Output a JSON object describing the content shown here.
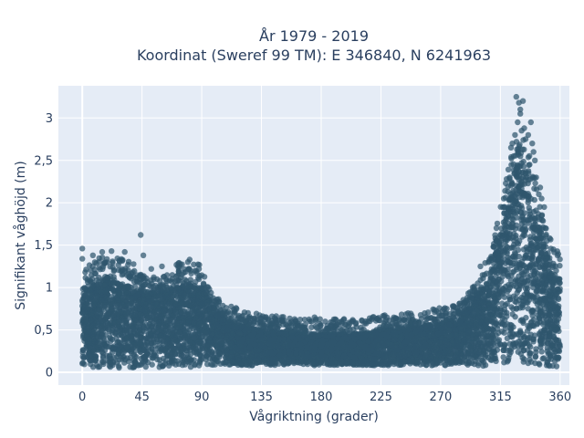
{
  "chart_data": {
    "type": "scatter",
    "title": "År 1979 - 2019",
    "subtitle": "Koordinat (Sweref 99 TM): E 346840, N 6241963",
    "xlabel": "Vågriktning (grader)",
    "ylabel": "Signifikant våghöjd (m)",
    "xlim": [
      -18,
      367
    ],
    "ylim": [
      -0.15,
      3.38
    ],
    "x_ticks": [
      0,
      45,
      90,
      135,
      180,
      225,
      270,
      315,
      360
    ],
    "x_tick_labels": [
      "0",
      "45",
      "90",
      "135",
      "180",
      "225",
      "270",
      "315",
      "360"
    ],
    "y_ticks": [
      0,
      0.5,
      1,
      1.5,
      2,
      2.5,
      3
    ],
    "y_tick_labels": [
      "0",
      "0,5",
      "1",
      "1,5",
      "2",
      "2,5",
      "3"
    ],
    "grid": true,
    "marker_color": "#2f566e",
    "plot_background": "#e5ecf6",
    "envelope": {
      "description_x": [
        0,
        10,
        20,
        30,
        40,
        50,
        60,
        70,
        80,
        90,
        100,
        110,
        120,
        135,
        150,
        165,
        180,
        195,
        210,
        225,
        240,
        255,
        270,
        280,
        290,
        300,
        305,
        310,
        315,
        320,
        325,
        330,
        335,
        340,
        345,
        350,
        355,
        360
      ],
      "upper_y": [
        1.0,
        1.05,
        1.1,
        1.05,
        1.0,
        0.95,
        0.95,
        1.0,
        1.05,
        1.0,
        0.75,
        0.62,
        0.55,
        0.5,
        0.48,
        0.45,
        0.45,
        0.45,
        0.46,
        0.5,
        0.52,
        0.55,
        0.58,
        0.62,
        0.75,
        0.95,
        1.05,
        1.3,
        1.7,
        2.1,
        2.4,
        2.5,
        2.4,
        2.1,
        1.7,
        1.4,
        1.2,
        1.1
      ],
      "lower_y": [
        0.05,
        0.05,
        0.05,
        0.05,
        0.05,
        0.05,
        0.05,
        0.05,
        0.05,
        0.08,
        0.08,
        0.08,
        0.08,
        0.08,
        0.08,
        0.08,
        0.08,
        0.08,
        0.08,
        0.08,
        0.08,
        0.08,
        0.08,
        0.08,
        0.08,
        0.08,
        0.07,
        0.07,
        0.07,
        0.07,
        0.07,
        0.07,
        0.07,
        0.07,
        0.07,
        0.06,
        0.05,
        0.05
      ]
    },
    "outliers": [
      [
        0,
        1.46
      ],
      [
        0,
        1.34
      ],
      [
        8,
        1.38
      ],
      [
        15,
        1.42
      ],
      [
        22,
        1.43
      ],
      [
        32,
        1.42
      ],
      [
        44,
        1.62
      ],
      [
        46,
        1.38
      ],
      [
        52,
        1.22
      ],
      [
        60,
        1.25
      ],
      [
        75,
        1.15
      ],
      [
        85,
        1.2
      ],
      [
        88,
        1.1
      ],
      [
        30,
        1.2
      ],
      [
        38,
        1.18
      ],
      [
        135,
        0.63
      ],
      [
        143,
        0.66
      ],
      [
        175,
        0.65
      ],
      [
        183,
        0.6
      ],
      [
        203,
        0.6
      ],
      [
        222,
        0.63
      ],
      [
        228,
        0.6
      ],
      [
        290,
        0.88
      ],
      [
        295,
        1.0
      ],
      [
        298,
        1.05
      ],
      [
        300,
        1.25
      ],
      [
        303,
        1.15
      ],
      [
        306,
        1.3
      ],
      [
        310,
        1.48
      ],
      [
        312,
        1.55
      ],
      [
        318,
        1.95
      ],
      [
        322,
        2.3
      ],
      [
        324,
        2.7
      ],
      [
        326,
        2.8
      ],
      [
        328,
        2.95
      ],
      [
        330,
        3.05
      ],
      [
        329,
        3.18
      ],
      [
        332,
        3.2
      ],
      [
        327,
        3.25
      ],
      [
        330,
        3.1
      ],
      [
        334,
        2.75
      ],
      [
        336,
        2.8
      ],
      [
        338,
        2.95
      ],
      [
        340,
        2.6
      ],
      [
        342,
        2.3
      ],
      [
        344,
        2.1
      ],
      [
        345,
        2.18
      ],
      [
        348,
        1.95
      ],
      [
        350,
        1.55
      ],
      [
        352,
        1.35
      ],
      [
        355,
        1.45
      ],
      [
        358,
        1.38
      ],
      [
        357,
        1.2
      ],
      [
        325,
        2.55
      ],
      [
        331,
        2.85
      ],
      [
        323,
        2.65
      ],
      [
        337,
        2.45
      ],
      [
        333,
        2.88
      ],
      [
        339,
        2.7
      ],
      [
        341,
        2.5
      ],
      [
        346,
        2.05
      ]
    ]
  }
}
